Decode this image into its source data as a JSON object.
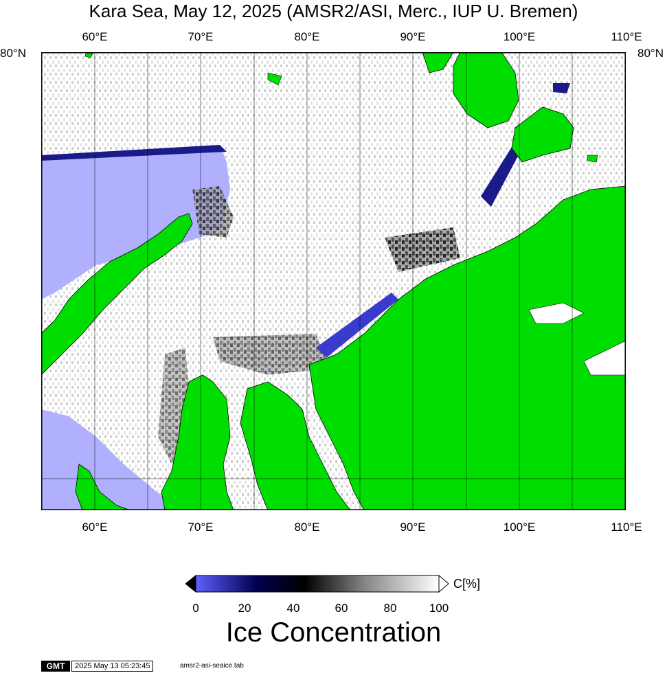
{
  "title": "Kara Sea, May 12, 2025 (AMSR2/ASI, Merc., IUP U. Bremen)",
  "map": {
    "lon_ticks": [
      "60°E",
      "70°E",
      "80°E",
      "90°E",
      "100°E",
      "110°E"
    ],
    "lat_tick": "80°N",
    "colors": {
      "land": "#00dd00",
      "open_water": "#b0b0ff",
      "coast": "#000000"
    }
  },
  "colorbar": {
    "ticks": [
      "0",
      "20",
      "40",
      "60",
      "80",
      "100"
    ],
    "unit": "C[%]",
    "label": "Ice Concentration",
    "stops": [
      "#5f5fff",
      "#00004f",
      "#000000",
      "#888888",
      "#ffffff"
    ]
  },
  "footer": {
    "logo": "GMT",
    "timestamp": "2025 May 13 05:23:45",
    "file": "amsr2-asi-seaice.tab"
  }
}
